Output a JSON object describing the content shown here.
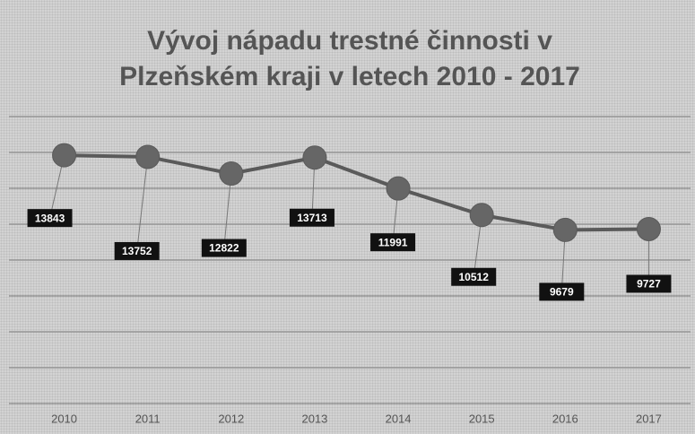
{
  "chart_data": {
    "type": "line",
    "title": "Vývoj nápadu trestné činnosti v Plzeňském kraji v letech 2010 - 2017",
    "categories": [
      "2010",
      "2011",
      "2012",
      "2013",
      "2014",
      "2015",
      "2016",
      "2017"
    ],
    "series": [
      {
        "color": "#5a5a5a",
        "values": [
          13843,
          13752,
          12822,
          13713,
          11991,
          10512,
          9679,
          9727
        ]
      }
    ],
    "ylim": [
      0,
      16000
    ],
    "yticks": [
      0,
      2000,
      4000,
      6000,
      8000,
      10000,
      12000,
      14000,
      16000
    ],
    "grid": true
  }
}
